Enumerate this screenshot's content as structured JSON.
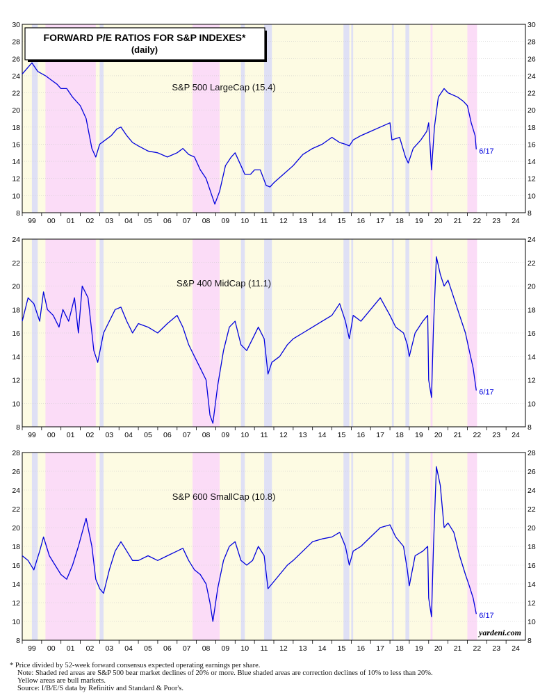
{
  "title_line1": "FORWARD P/E RATIOS FOR S&P INDEXES*",
  "title_line2": "(daily)",
  "watermark": "yardeni.com",
  "colors": {
    "line": "#0000dd",
    "bull": "#fdfbe3",
    "bear": "#fbdcf7",
    "correction": "#dfe0f5",
    "grid": "#c8c8c8"
  },
  "footnote": {
    "line1": "*  Price divided by 52-week forward consensus expected operating earnings per share.",
    "line2": "Note: Shaded red areas are S&P 500 bear market declines of 20% or more.  Blue shaded areas are correction declines of 10% to less than 20%.",
    "line3": "Yellow areas are bull markets.",
    "line4": "Source: I/B/E/S data by Refinitiv and Standard & Poor's."
  },
  "chart_data": [
    {
      "type": "line",
      "label": "S&P 500 LargeCap (15.4)",
      "end_label": "6/17",
      "x_range": [
        1999.0,
        2025.0
      ],
      "x_ticks": [
        "99",
        "00",
        "01",
        "02",
        "03",
        "04",
        "05",
        "06",
        "07",
        "08",
        "09",
        "10",
        "11",
        "12",
        "13",
        "14",
        "15",
        "16",
        "17",
        "18",
        "19",
        "20",
        "21",
        "22",
        "23",
        "24"
      ],
      "ylim": [
        8,
        30
      ],
      "y_ticks": [
        8,
        10,
        12,
        14,
        16,
        18,
        20,
        22,
        24,
        26,
        28,
        30
      ],
      "grid": true,
      "shading": {
        "bear": [
          [
            2000.2,
            2002.8
          ],
          [
            2007.8,
            2009.2
          ],
          [
            2020.1,
            2020.2
          ],
          [
            2022.0,
            2022.5
          ]
        ],
        "correction": [
          [
            1999.5,
            1999.8
          ],
          [
            2003.0,
            2003.2
          ],
          [
            2010.3,
            2010.5
          ],
          [
            2011.5,
            2011.9
          ],
          [
            2015.6,
            2015.9
          ],
          [
            2016.0,
            2016.1
          ],
          [
            2018.1,
            2018.2
          ],
          [
            2018.8,
            2019.0
          ]
        ]
      },
      "x": [
        1999.0,
        1999.5,
        1999.8,
        2000.2,
        2000.5,
        2000.8,
        2001.0,
        2001.3,
        2001.6,
        2001.8,
        2002.0,
        2002.3,
        2002.6,
        2002.8,
        2003.0,
        2003.3,
        2003.6,
        2003.9,
        2004.1,
        2004.4,
        2004.7,
        2005.0,
        2005.5,
        2006.0,
        2006.5,
        2007.0,
        2007.3,
        2007.6,
        2007.9,
        2008.2,
        2008.5,
        2008.8,
        2008.95,
        2009.2,
        2009.5,
        2009.8,
        2010.0,
        2010.3,
        2010.5,
        2010.8,
        2011.0,
        2011.3,
        2011.6,
        2011.8,
        2012.0,
        2012.5,
        2013.0,
        2013.5,
        2014.0,
        2014.5,
        2015.0,
        2015.4,
        2015.7,
        2015.9,
        2016.1,
        2016.5,
        2017.0,
        2017.5,
        2018.0,
        2018.1,
        2018.5,
        2018.8,
        2018.95,
        2019.2,
        2019.6,
        2019.9,
        2020.0,
        2020.15,
        2020.3,
        2020.5,
        2020.8,
        2021.0,
        2021.5,
        2021.8,
        2022.0,
        2022.2,
        2022.4,
        2022.46
      ],
      "y": [
        24.2,
        25.5,
        24.5,
        24.0,
        23.5,
        23.0,
        22.5,
        22.5,
        21.5,
        21.0,
        20.5,
        19.0,
        15.5,
        14.5,
        16.0,
        16.5,
        17.0,
        17.8,
        18.0,
        17.0,
        16.2,
        15.8,
        15.2,
        15.0,
        14.5,
        15.0,
        15.5,
        14.8,
        14.5,
        13.0,
        12.0,
        10.0,
        9.0,
        10.5,
        13.5,
        14.5,
        15.0,
        13.5,
        12.5,
        12.5,
        13.0,
        13.0,
        11.2,
        11.0,
        11.5,
        12.5,
        13.5,
        14.8,
        15.5,
        16.0,
        16.8,
        16.2,
        16.0,
        15.8,
        16.5,
        17.0,
        17.5,
        18.0,
        18.5,
        16.5,
        16.8,
        14.5,
        13.8,
        15.5,
        16.5,
        17.5,
        18.5,
        13.0,
        18.0,
        21.5,
        22.5,
        22.0,
        21.5,
        21.0,
        20.5,
        18.5,
        17.0,
        15.4
      ]
    },
    {
      "type": "line",
      "label": "S&P 400 MidCap (11.1)",
      "end_label": "6/17",
      "x_range": [
        1999.0,
        2025.0
      ],
      "x_ticks": [
        "99",
        "00",
        "01",
        "02",
        "03",
        "04",
        "05",
        "06",
        "07",
        "08",
        "09",
        "10",
        "11",
        "12",
        "13",
        "14",
        "15",
        "16",
        "17",
        "18",
        "19",
        "20",
        "21",
        "22",
        "23",
        "24"
      ],
      "ylim": [
        8,
        24
      ],
      "y_ticks": [
        8,
        10,
        12,
        14,
        16,
        18,
        20,
        22,
        24
      ],
      "grid": true,
      "shading": {
        "bear": [
          [
            2000.2,
            2002.8
          ],
          [
            2007.8,
            2009.2
          ],
          [
            2020.1,
            2020.2
          ],
          [
            2022.0,
            2022.5
          ]
        ],
        "correction": [
          [
            1999.5,
            1999.8
          ],
          [
            2003.0,
            2003.2
          ],
          [
            2010.3,
            2010.5
          ],
          [
            2011.5,
            2011.9
          ],
          [
            2015.6,
            2015.9
          ],
          [
            2016.0,
            2016.1
          ],
          [
            2018.1,
            2018.2
          ],
          [
            2018.8,
            2019.0
          ]
        ]
      },
      "x": [
        1999.0,
        1999.3,
        1999.6,
        1999.9,
        2000.1,
        2000.3,
        2000.6,
        2000.9,
        2001.1,
        2001.4,
        2001.7,
        2001.9,
        2002.1,
        2002.4,
        2002.7,
        2002.9,
        2003.2,
        2003.5,
        2003.8,
        2004.1,
        2004.4,
        2004.7,
        2005.0,
        2005.5,
        2006.0,
        2006.5,
        2007.0,
        2007.3,
        2007.6,
        2007.9,
        2008.2,
        2008.5,
        2008.7,
        2008.85,
        2009.1,
        2009.4,
        2009.7,
        2010.0,
        2010.3,
        2010.6,
        2010.9,
        2011.2,
        2011.5,
        2011.7,
        2011.9,
        2012.3,
        2012.7,
        2013.0,
        2013.5,
        2014.0,
        2014.5,
        2015.0,
        2015.4,
        2015.7,
        2015.9,
        2016.1,
        2016.5,
        2017.0,
        2017.5,
        2018.0,
        2018.3,
        2018.7,
        2018.9,
        2019.0,
        2019.3,
        2019.7,
        2019.95,
        2020.0,
        2020.15,
        2020.25,
        2020.4,
        2020.6,
        2020.8,
        2021.0,
        2021.3,
        2021.6,
        2021.9,
        2022.1,
        2022.3,
        2022.46
      ],
      "y": [
        17.0,
        19.0,
        18.5,
        17.0,
        19.5,
        18.0,
        17.5,
        16.5,
        18.0,
        17.0,
        19.0,
        16.0,
        20.0,
        19.0,
        14.5,
        13.5,
        16.0,
        17.0,
        18.0,
        18.2,
        17.0,
        16.0,
        16.8,
        16.5,
        16.0,
        16.8,
        17.5,
        16.5,
        15.0,
        14.0,
        13.0,
        12.0,
        9.0,
        8.3,
        11.5,
        14.5,
        16.5,
        17.0,
        15.0,
        14.5,
        15.5,
        16.5,
        15.5,
        12.5,
        13.5,
        14.0,
        15.0,
        15.5,
        16.0,
        16.5,
        17.0,
        17.5,
        18.5,
        17.0,
        15.5,
        17.5,
        17.0,
        18.0,
        19.0,
        17.5,
        16.5,
        16.0,
        15.0,
        14.0,
        16.0,
        17.0,
        17.5,
        12.0,
        10.5,
        16.5,
        22.5,
        21.0,
        20.0,
        20.5,
        19.0,
        17.5,
        16.0,
        14.5,
        13.0,
        11.1
      ]
    },
    {
      "type": "line",
      "label": "S&P 600 SmallCap (10.8)",
      "end_label": "6/17",
      "x_range": [
        1999.0,
        2025.0
      ],
      "x_ticks": [
        "99",
        "00",
        "01",
        "02",
        "03",
        "04",
        "05",
        "06",
        "07",
        "08",
        "09",
        "10",
        "11",
        "12",
        "13",
        "14",
        "15",
        "16",
        "17",
        "18",
        "19",
        "20",
        "21",
        "22",
        "23",
        "24"
      ],
      "ylim": [
        8,
        28
      ],
      "y_ticks": [
        8,
        10,
        12,
        14,
        16,
        18,
        20,
        22,
        24,
        26,
        28
      ],
      "grid": true,
      "shading": {
        "bear": [
          [
            2000.2,
            2002.8
          ],
          [
            2007.8,
            2009.2
          ],
          [
            2020.1,
            2020.2
          ],
          [
            2022.0,
            2022.5
          ]
        ],
        "correction": [
          [
            1999.5,
            1999.8
          ],
          [
            2003.0,
            2003.2
          ],
          [
            2010.3,
            2010.5
          ],
          [
            2011.5,
            2011.9
          ],
          [
            2015.6,
            2015.9
          ],
          [
            2016.0,
            2016.1
          ],
          [
            2018.1,
            2018.2
          ],
          [
            2018.8,
            2019.0
          ]
        ]
      },
      "x": [
        1999.0,
        1999.3,
        1999.6,
        1999.9,
        2000.1,
        2000.4,
        2000.7,
        2001.0,
        2001.3,
        2001.6,
        2001.9,
        2002.1,
        2002.3,
        2002.6,
        2002.8,
        2003.0,
        2003.2,
        2003.5,
        2003.8,
        2004.1,
        2004.4,
        2004.7,
        2005.0,
        2005.5,
        2006.0,
        2006.5,
        2007.0,
        2007.3,
        2007.6,
        2007.9,
        2008.2,
        2008.5,
        2008.7,
        2008.85,
        2009.1,
        2009.4,
        2009.7,
        2010.0,
        2010.3,
        2010.6,
        2010.9,
        2011.2,
        2011.5,
        2011.7,
        2011.9,
        2012.3,
        2012.7,
        2013.0,
        2013.5,
        2014.0,
        2014.5,
        2015.0,
        2015.4,
        2015.7,
        2015.9,
        2016.1,
        2016.5,
        2017.0,
        2017.5,
        2018.0,
        2018.3,
        2018.7,
        2018.9,
        2019.0,
        2019.3,
        2019.7,
        2019.95,
        2020.0,
        2020.15,
        2020.25,
        2020.4,
        2020.6,
        2020.8,
        2021.0,
        2021.3,
        2021.6,
        2021.9,
        2022.1,
        2022.3,
        2022.46
      ],
      "y": [
        17.0,
        16.5,
        15.5,
        17.5,
        19.0,
        17.0,
        16.0,
        15.0,
        14.5,
        16.0,
        18.0,
        19.5,
        21.0,
        18.0,
        14.5,
        13.5,
        13.0,
        15.5,
        17.5,
        18.5,
        17.5,
        16.5,
        16.5,
        17.0,
        16.5,
        17.0,
        17.5,
        17.8,
        16.5,
        15.5,
        15.0,
        14.0,
        12.0,
        10.0,
        13.5,
        16.5,
        18.0,
        18.5,
        16.5,
        16.0,
        16.5,
        18.0,
        17.0,
        13.5,
        14.0,
        15.0,
        16.0,
        16.5,
        17.5,
        18.5,
        18.8,
        19.0,
        19.5,
        18.0,
        16.0,
        17.5,
        18.0,
        19.0,
        20.0,
        20.3,
        19.0,
        18.0,
        15.5,
        13.8,
        17.0,
        17.5,
        18.0,
        12.5,
        10.5,
        18.0,
        26.5,
        24.5,
        20.0,
        20.5,
        19.5,
        17.0,
        15.0,
        13.8,
        12.5,
        10.8
      ]
    }
  ]
}
